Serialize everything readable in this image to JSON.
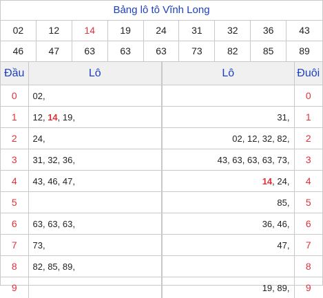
{
  "title": "Bảng lô tô Vĩnh Long",
  "numbers": [
    "02",
    "12",
    "14",
    "19",
    "24",
    "31",
    "32",
    "36",
    "43",
    "46",
    "47",
    "63",
    "63",
    "63",
    "73",
    "82",
    "85",
    "89"
  ],
  "highlight_number": "14",
  "colors": {
    "title": "#1a3fc2",
    "highlight": "#e0303a",
    "border": "#c8c8c8",
    "header_bg": "#f0f0f0"
  },
  "table": {
    "headers": {
      "dau": "Đầu",
      "lo_left": "Lô",
      "lo_right": "Lô",
      "duoi": "Đuôi"
    },
    "rows": [
      {
        "dau": "0",
        "lo": [
          "02"
        ],
        "duoi": "0",
        "lo_duoi": []
      },
      {
        "dau": "1",
        "lo": [
          "12",
          "14",
          "19"
        ],
        "duoi": "1",
        "lo_duoi": [
          "31"
        ]
      },
      {
        "dau": "2",
        "lo": [
          "24"
        ],
        "duoi": "2",
        "lo_duoi": [
          "02",
          "12",
          "32",
          "82"
        ]
      },
      {
        "dau": "3",
        "lo": [
          "31",
          "32",
          "36"
        ],
        "duoi": "3",
        "lo_duoi": [
          "43",
          "63",
          "63",
          "63",
          "73"
        ]
      },
      {
        "dau": "4",
        "lo": [
          "43",
          "46",
          "47"
        ],
        "duoi": "4",
        "lo_duoi": [
          "14",
          "24"
        ]
      },
      {
        "dau": "5",
        "lo": [],
        "duoi": "5",
        "lo_duoi": [
          "85"
        ]
      },
      {
        "dau": "6",
        "lo": [
          "63",
          "63",
          "63"
        ],
        "duoi": "6",
        "lo_duoi": [
          "36",
          "46"
        ]
      },
      {
        "dau": "7",
        "lo": [
          "73"
        ],
        "duoi": "7",
        "lo_duoi": [
          "47"
        ]
      },
      {
        "dau": "8",
        "lo": [
          "82",
          "85",
          "89"
        ],
        "duoi": "8",
        "lo_duoi": []
      },
      {
        "dau": "9",
        "lo": [],
        "duoi": "9",
        "lo_duoi": [
          "19",
          "89"
        ]
      }
    ]
  }
}
